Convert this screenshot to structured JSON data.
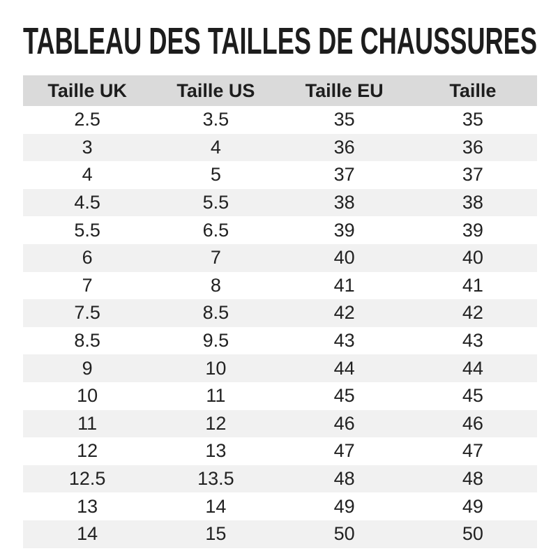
{
  "title": "TABLEAU DES TAILLES DE CHAUSSURES",
  "chart_data": {
    "type": "table",
    "title": "TABLEAU DES TAILLES DE CHAUSSURES",
    "columns": [
      "Taille UK",
      "Taille US",
      "Taille EU",
      "Taille"
    ],
    "rows": [
      [
        "2.5",
        "3.5",
        "35",
        "35"
      ],
      [
        "3",
        "4",
        "36",
        "36"
      ],
      [
        "4",
        "5",
        "37",
        "37"
      ],
      [
        "4.5",
        "5.5",
        "38",
        "38"
      ],
      [
        "5.5",
        "6.5",
        "39",
        "39"
      ],
      [
        "6",
        "7",
        "40",
        "40"
      ],
      [
        "7",
        "8",
        "41",
        "41"
      ],
      [
        "7.5",
        "8.5",
        "42",
        "42"
      ],
      [
        "8.5",
        "9.5",
        "43",
        "43"
      ],
      [
        "9",
        "10",
        "44",
        "44"
      ],
      [
        "10",
        "11",
        "45",
        "45"
      ],
      [
        "11",
        "12",
        "46",
        "46"
      ],
      [
        "12",
        "13",
        "47",
        "47"
      ],
      [
        "12.5",
        "13.5",
        "48",
        "48"
      ],
      [
        "13",
        "14",
        "49",
        "49"
      ],
      [
        "14",
        "15",
        "50",
        "50"
      ]
    ],
    "layout": {
      "zebra_striping": true,
      "first_data_row_background": "white",
      "text_alignment": "center"
    }
  },
  "colors": {
    "background": "#ffffff",
    "title_text": "#1d1d1d",
    "header_background": "#dadada",
    "header_text": "#1d1d1d",
    "row_alt_background": "#f1f1f1",
    "cell_text": "#212121"
  }
}
